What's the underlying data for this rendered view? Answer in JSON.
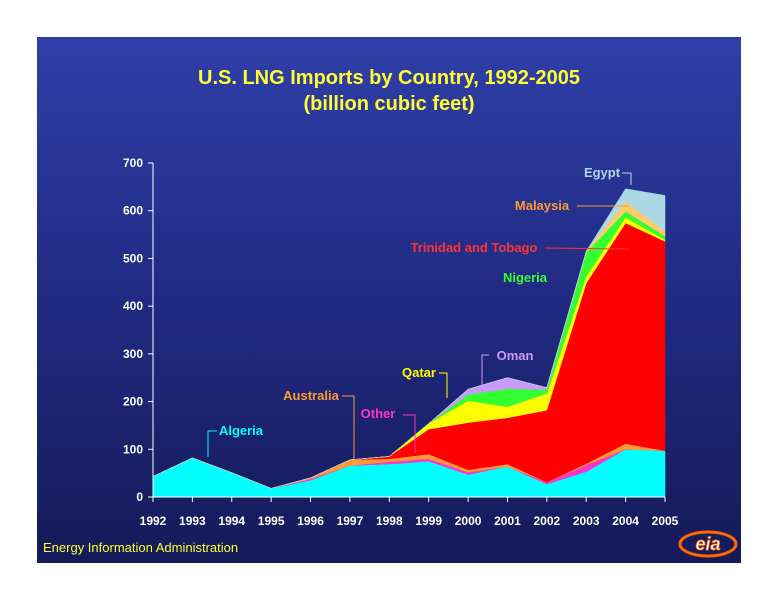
{
  "slide": {
    "title_line1": "U.S. LNG Imports by Country, 1992-2005",
    "title_line2": "(billion cubic feet)",
    "source": "Energy Information Administration",
    "logo_text": "eia"
  },
  "colors": {
    "background_top": "#2f3fa8",
    "background_bottom": "#141a58",
    "title": "#ffff33",
    "axis_text": "#ffffff"
  },
  "chart_data": {
    "type": "area",
    "stacked": true,
    "title": "U.S. LNG Imports by Country, 1992-2005",
    "subtitle": "(billion cubic feet)",
    "xlabel": "",
    "ylabel": "",
    "x": [
      1992,
      1993,
      1994,
      1995,
      1996,
      1997,
      1998,
      1999,
      2000,
      2001,
      2002,
      2003,
      2004,
      2005
    ],
    "ylim": [
      0,
      700
    ],
    "yticks": [
      0,
      100,
      200,
      300,
      400,
      500,
      600,
      700
    ],
    "grid": false,
    "series": [
      {
        "name": "Algeria",
        "color": "#00ffff",
        "values": [
          43,
          82,
          51,
          18,
          35,
          66,
          69,
          75,
          47,
          64,
          27,
          53,
          100,
          97
        ]
      },
      {
        "name": "Other",
        "color": "#ff33cc",
        "values": [
          0,
          0,
          0,
          0,
          3,
          0,
          5,
          5,
          5,
          0,
          4,
          14,
          0,
          0
        ]
      },
      {
        "name": "Australia",
        "color": "#ff9933",
        "values": [
          0,
          0,
          0,
          0,
          2,
          12,
          6,
          10,
          5,
          5,
          0,
          3,
          12,
          0
        ]
      },
      {
        "name": "Trinidad and Tobago",
        "color": "#ff0000",
        "values": [
          0,
          0,
          0,
          0,
          0,
          0,
          5,
          52,
          99,
          97,
          151,
          378,
          462,
          439
        ]
      },
      {
        "name": "Qatar",
        "color": "#ffff00",
        "values": [
          0,
          0,
          0,
          0,
          0,
          0,
          0,
          12,
          46,
          23,
          35,
          14,
          12,
          3
        ]
      },
      {
        "name": "Nigeria",
        "color": "#33ff33",
        "values": [
          0,
          0,
          0,
          0,
          0,
          0,
          0,
          0,
          13,
          38,
          8,
          50,
          13,
          8
        ]
      },
      {
        "name": "Oman",
        "color": "#cc99ff",
        "values": [
          0,
          0,
          0,
          0,
          0,
          0,
          0,
          0,
          11,
          23,
          4,
          0,
          0,
          0
        ]
      },
      {
        "name": "Malaysia",
        "color": "#ffcc66",
        "values": [
          0,
          0,
          0,
          0,
          0,
          0,
          0,
          0,
          0,
          0,
          0,
          3,
          20,
          10
        ]
      },
      {
        "name": "Egypt",
        "color": "#add8e6",
        "values": [
          0,
          0,
          0,
          0,
          0,
          0,
          0,
          0,
          0,
          0,
          0,
          0,
          27,
          75
        ]
      }
    ],
    "annotations": [
      {
        "text": "Egypt",
        "series": "Egypt",
        "color": "#add8e6"
      },
      {
        "text": "Malaysia",
        "series": "Malaysia",
        "color": "#ff9933"
      },
      {
        "text": "Trinidad and Tobago",
        "series": "Trinidad and Tobago",
        "color": "#ff3333"
      },
      {
        "text": "Nigeria",
        "series": "Nigeria",
        "color": "#33ff33"
      },
      {
        "text": "Oman",
        "series": "Oman",
        "color": "#cc99ff"
      },
      {
        "text": "Qatar",
        "series": "Qatar",
        "color": "#ffff00"
      },
      {
        "text": "Australia",
        "series": "Australia",
        "color": "#ff9933"
      },
      {
        "text": "Other",
        "series": "Other",
        "color": "#ff33cc"
      },
      {
        "text": "Algeria",
        "series": "Algeria",
        "color": "#00ffff"
      }
    ]
  }
}
